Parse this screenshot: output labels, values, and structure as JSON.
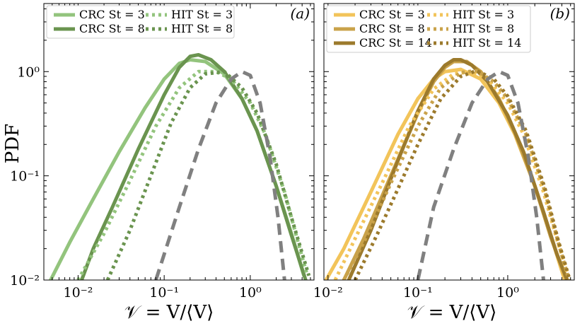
{
  "figure": {
    "ylabel": "PDF",
    "xlabel": "𝒱 = V/⟨V⟩"
  },
  "chart_data": [
    {
      "type": "line",
      "panel_label": "(a)",
      "xscale": "log",
      "yscale": "log",
      "xlim": [
        0.004,
        5.5
      ],
      "ylim": [
        0.01,
        4.5
      ],
      "xticks": [
        0.01,
        0.1,
        1
      ],
      "xtick_labels": [
        "10⁻²",
        "10⁻¹",
        "10⁰"
      ],
      "yticks": [
        0.01,
        0.1,
        1
      ],
      "ytick_labels": [
        "10⁻²",
        "10⁻¹",
        "10⁰"
      ],
      "ylabel": "PDF",
      "xlabel": "𝒱 = V/⟨V⟩",
      "legend_position": "top-left",
      "legend_columns": 2,
      "series": [
        {
          "name": "CRC St = 3",
          "color": "#93c47d",
          "style": "solid",
          "x": [
            0.0048,
            0.008,
            0.015,
            0.03,
            0.06,
            0.1,
            0.15,
            0.2,
            0.3,
            0.5,
            0.8,
            1.2,
            2,
            3,
            4.2
          ],
          "y": [
            0.01,
            0.023,
            0.06,
            0.17,
            0.45,
            0.85,
            1.2,
            1.3,
            1.25,
            0.95,
            0.55,
            0.27,
            0.08,
            0.028,
            0.011
          ]
        },
        {
          "name": "CRC St = 8",
          "color": "#6a944f",
          "style": "solid",
          "x": [
            0.011,
            0.015,
            0.025,
            0.05,
            0.1,
            0.15,
            0.2,
            0.25,
            0.35,
            0.5,
            0.8,
            1.2,
            2,
            3,
            4.4
          ],
          "y": [
            0.01,
            0.02,
            0.05,
            0.18,
            0.6,
            1.1,
            1.4,
            1.45,
            1.3,
            1.0,
            0.55,
            0.27,
            0.08,
            0.027,
            0.01
          ]
        },
        {
          "name": "HIT St = 3",
          "color": "#93c47d",
          "style": "dotted",
          "x": [
            0.01,
            0.02,
            0.04,
            0.08,
            0.15,
            0.25,
            0.4,
            0.6,
            1.0,
            1.5,
            2.5,
            3.5,
            4.6
          ],
          "y": [
            0.01,
            0.028,
            0.09,
            0.3,
            0.7,
            1.0,
            1.0,
            0.85,
            0.5,
            0.25,
            0.07,
            0.025,
            0.011
          ]
        },
        {
          "name": "HIT St = 8",
          "color": "#6a944f",
          "style": "dotted",
          "x": [
            0.022,
            0.04,
            0.07,
            0.12,
            0.2,
            0.3,
            0.5,
            0.8,
            1.2,
            2,
            3,
            4.8
          ],
          "y": [
            0.01,
            0.03,
            0.1,
            0.32,
            0.7,
            0.95,
            1.0,
            0.7,
            0.4,
            0.13,
            0.04,
            0.011
          ]
        },
        {
          "name": "",
          "color": "#808080",
          "style": "dashed",
          "x": [
            0.08,
            0.15,
            0.25,
            0.4,
            0.6,
            0.8,
            1.0,
            1.3,
            1.7,
            2.1,
            2.5
          ],
          "y": [
            0.01,
            0.05,
            0.18,
            0.5,
            0.85,
            1.0,
            0.92,
            0.5,
            0.15,
            0.04,
            0.01
          ]
        }
      ]
    },
    {
      "type": "line",
      "panel_label": "(b)",
      "xscale": "log",
      "yscale": "log",
      "xlim": [
        0.009,
        5.5
      ],
      "ylim": [
        0.01,
        4.5
      ],
      "xticks": [
        0.01,
        0.1,
        1
      ],
      "xtick_labels": [
        "10⁻²",
        "10⁻¹",
        "10⁰"
      ],
      "yticks": [
        0.01,
        0.1,
        1
      ],
      "ytick_labels": [
        "",
        "",
        ""
      ],
      "xlabel": "𝒱 = V/⟨V⟩",
      "legend_position": "top-left",
      "legend_columns": 2,
      "series": [
        {
          "name": "CRC St = 3",
          "color": "#f2c45a",
          "style": "solid",
          "x": [
            0.0095,
            0.015,
            0.03,
            0.06,
            0.1,
            0.15,
            0.2,
            0.3,
            0.5,
            0.8,
            1.2,
            2,
            3,
            4.3
          ],
          "y": [
            0.01,
            0.02,
            0.07,
            0.25,
            0.55,
            0.85,
            1.0,
            1.05,
            0.85,
            0.5,
            0.25,
            0.08,
            0.027,
            0.01
          ]
        },
        {
          "name": "CRC St = 8",
          "color": "#c9a24a",
          "style": "solid",
          "x": [
            0.015,
            0.025,
            0.05,
            0.1,
            0.15,
            0.2,
            0.25,
            0.35,
            0.5,
            0.8,
            1.2,
            2,
            3,
            4.5
          ],
          "y": [
            0.01,
            0.025,
            0.1,
            0.4,
            0.8,
            1.1,
            1.25,
            1.25,
            1.0,
            0.55,
            0.26,
            0.08,
            0.026,
            0.01
          ]
        },
        {
          "name": "CRC St = 14",
          "color": "#9c7a2c",
          "style": "solid",
          "x": [
            0.017,
            0.03,
            0.06,
            0.1,
            0.15,
            0.2,
            0.25,
            0.3,
            0.4,
            0.6,
            1.0,
            1.5,
            2.5,
            3.5,
            4.6
          ],
          "y": [
            0.01,
            0.03,
            0.14,
            0.42,
            0.85,
            1.15,
            1.3,
            1.3,
            1.15,
            0.8,
            0.38,
            0.17,
            0.045,
            0.018,
            0.01
          ]
        },
        {
          "name": "HIT St = 3",
          "color": "#f2c45a",
          "style": "dotted",
          "x": [
            0.012,
            0.02,
            0.04,
            0.08,
            0.15,
            0.25,
            0.4,
            0.6,
            1.0,
            1.5,
            2.5,
            3.5,
            4.7
          ],
          "y": [
            0.01,
            0.025,
            0.085,
            0.3,
            0.68,
            0.95,
            1.0,
            0.85,
            0.5,
            0.25,
            0.07,
            0.025,
            0.011
          ]
        },
        {
          "name": "HIT St = 8",
          "color": "#c9a24a",
          "style": "dotted",
          "x": [
            0.015,
            0.025,
            0.05,
            0.1,
            0.18,
            0.3,
            0.45,
            0.7,
            1.0,
            1.6,
            2.6,
            3.6,
            4.8
          ],
          "y": [
            0.01,
            0.023,
            0.085,
            0.3,
            0.7,
            0.98,
            1.02,
            0.8,
            0.55,
            0.25,
            0.07,
            0.024,
            0.01
          ]
        },
        {
          "name": "HIT St = 14",
          "color": "#9c7a2c",
          "style": "dotted",
          "x": [
            0.02,
            0.035,
            0.06,
            0.1,
            0.18,
            0.3,
            0.45,
            0.7,
            1.0,
            1.6,
            2.6,
            3.6,
            4.9
          ],
          "y": [
            0.01,
            0.027,
            0.075,
            0.2,
            0.55,
            0.9,
            1.02,
            0.85,
            0.58,
            0.27,
            0.075,
            0.025,
            0.01
          ]
        },
        {
          "name": "",
          "color": "#808080",
          "style": "dashed",
          "x": [
            0.1,
            0.15,
            0.25,
            0.4,
            0.6,
            0.8,
            1.0,
            1.3,
            1.7,
            2.1,
            2.5
          ],
          "y": [
            0.01,
            0.05,
            0.18,
            0.5,
            0.85,
            1.0,
            0.92,
            0.5,
            0.15,
            0.04,
            0.01
          ]
        }
      ]
    }
  ]
}
